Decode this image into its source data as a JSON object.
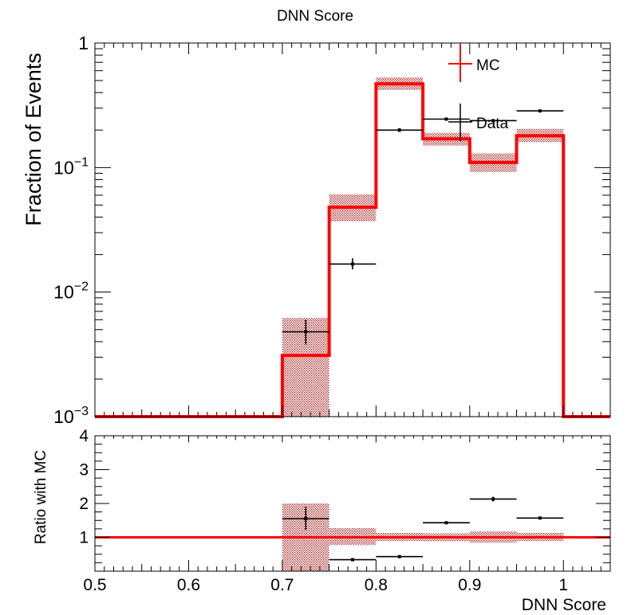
{
  "title": "DNN Score",
  "colors": {
    "mc": "#ff0000",
    "mc_band": "#a01818",
    "data": "#000000"
  },
  "chart_data": [
    {
      "type": "histogram",
      "panel": "main",
      "ylabel": "Fraction of Events",
      "yscale": "log",
      "ylim": [
        0.001,
        1
      ],
      "xlim": [
        0.5,
        1.05
      ],
      "legend": {
        "placement": "top-right",
        "entries": [
          "MC",
          "Data"
        ]
      },
      "mc": {
        "name": "MC",
        "bins": [
          {
            "lo": 0.5,
            "hi": 0.7,
            "value": 0.001,
            "band": null
          },
          {
            "lo": 0.7,
            "hi": 0.75,
            "value": 0.0031,
            "band": [
              0.001,
              0.0062
            ]
          },
          {
            "lo": 0.75,
            "hi": 0.8,
            "value": 0.048,
            "band": [
              0.037,
              0.061
            ]
          },
          {
            "lo": 0.8,
            "hi": 0.85,
            "value": 0.47,
            "band": [
              0.42,
              0.53
            ]
          },
          {
            "lo": 0.85,
            "hi": 0.9,
            "value": 0.17,
            "band": [
              0.15,
              0.19
            ]
          },
          {
            "lo": 0.9,
            "hi": 0.95,
            "value": 0.11,
            "band": [
              0.092,
              0.13
            ]
          },
          {
            "lo": 0.95,
            "hi": 1.0,
            "value": 0.18,
            "band": [
              0.16,
              0.205
            ]
          },
          {
            "lo": 1.0,
            "hi": 1.05,
            "value": 0.001,
            "band": null
          }
        ]
      },
      "data": {
        "name": "Data",
        "points": [
          {
            "x": 0.725,
            "xerr": 0.025,
            "y": 0.0048,
            "yerr": [
              0.0038,
              0.006
            ]
          },
          {
            "x": 0.775,
            "xerr": 0.025,
            "y": 0.0168,
            "yerr": [
              0.0152,
              0.0187
            ]
          },
          {
            "x": 0.825,
            "xerr": 0.025,
            "y": 0.2,
            "yerr": [
              0.193,
              0.207
            ]
          },
          {
            "x": 0.875,
            "xerr": 0.025,
            "y": 0.245,
            "yerr": [
              0.238,
              0.252
            ]
          },
          {
            "x": 0.925,
            "xerr": 0.025,
            "y": 0.238,
            "yerr": [
              0.231,
              0.245
            ]
          },
          {
            "x": 0.975,
            "xerr": 0.025,
            "y": 0.285,
            "yerr": [
              0.278,
              0.292
            ]
          }
        ]
      }
    },
    {
      "type": "ratio",
      "panel": "ratio",
      "xlabel": "DNN Score",
      "ylabel": "Ratio with MC",
      "ylim": [
        0,
        4
      ],
      "xlim": [
        0.5,
        1.05
      ],
      "reference_line": 1,
      "mc_band": [
        {
          "lo": 0.7,
          "hi": 0.75,
          "band": [
            0,
            2.0
          ]
        },
        {
          "lo": 0.75,
          "hi": 0.8,
          "band": [
            0.77,
            1.27
          ]
        },
        {
          "lo": 0.8,
          "hi": 0.85,
          "band": [
            0.89,
            1.13
          ]
        },
        {
          "lo": 0.85,
          "hi": 0.9,
          "band": [
            0.88,
            1.12
          ]
        },
        {
          "lo": 0.9,
          "hi": 0.95,
          "band": [
            0.84,
            1.18
          ]
        },
        {
          "lo": 0.95,
          "hi": 1.0,
          "band": [
            0.89,
            1.13
          ]
        }
      ],
      "points": [
        {
          "x": 0.725,
          "xerr": 0.025,
          "y": 1.55,
          "yerr": [
            1.22,
            1.9
          ]
        },
        {
          "x": 0.775,
          "xerr": 0.025,
          "y": 0.34,
          "yerr": [
            0.3,
            0.38
          ]
        },
        {
          "x": 0.825,
          "xerr": 0.025,
          "y": 0.43,
          "yerr": [
            0.41,
            0.45
          ]
        },
        {
          "x": 0.875,
          "xerr": 0.025,
          "y": 1.43,
          "yerr": [
            1.39,
            1.47
          ]
        },
        {
          "x": 0.925,
          "xerr": 0.025,
          "y": 2.13,
          "yerr": [
            2.06,
            2.2
          ]
        },
        {
          "x": 0.975,
          "xerr": 0.025,
          "y": 1.57,
          "yerr": [
            1.53,
            1.61
          ]
        }
      ]
    }
  ],
  "axes": {
    "main_y_ticks": [
      {
        "value": 1,
        "base": "1",
        "exp": ""
      },
      {
        "value": 0.1,
        "base": "10",
        "exp": "−1"
      },
      {
        "value": 0.01,
        "base": "10",
        "exp": "−2"
      },
      {
        "value": 0.001,
        "base": "10",
        "exp": "−3"
      }
    ],
    "ratio_y_ticks": [
      "1",
      "2",
      "3",
      "4"
    ],
    "x_ticks": [
      "0.5",
      "0.6",
      "0.7",
      "0.8",
      "0.9",
      "1"
    ]
  }
}
